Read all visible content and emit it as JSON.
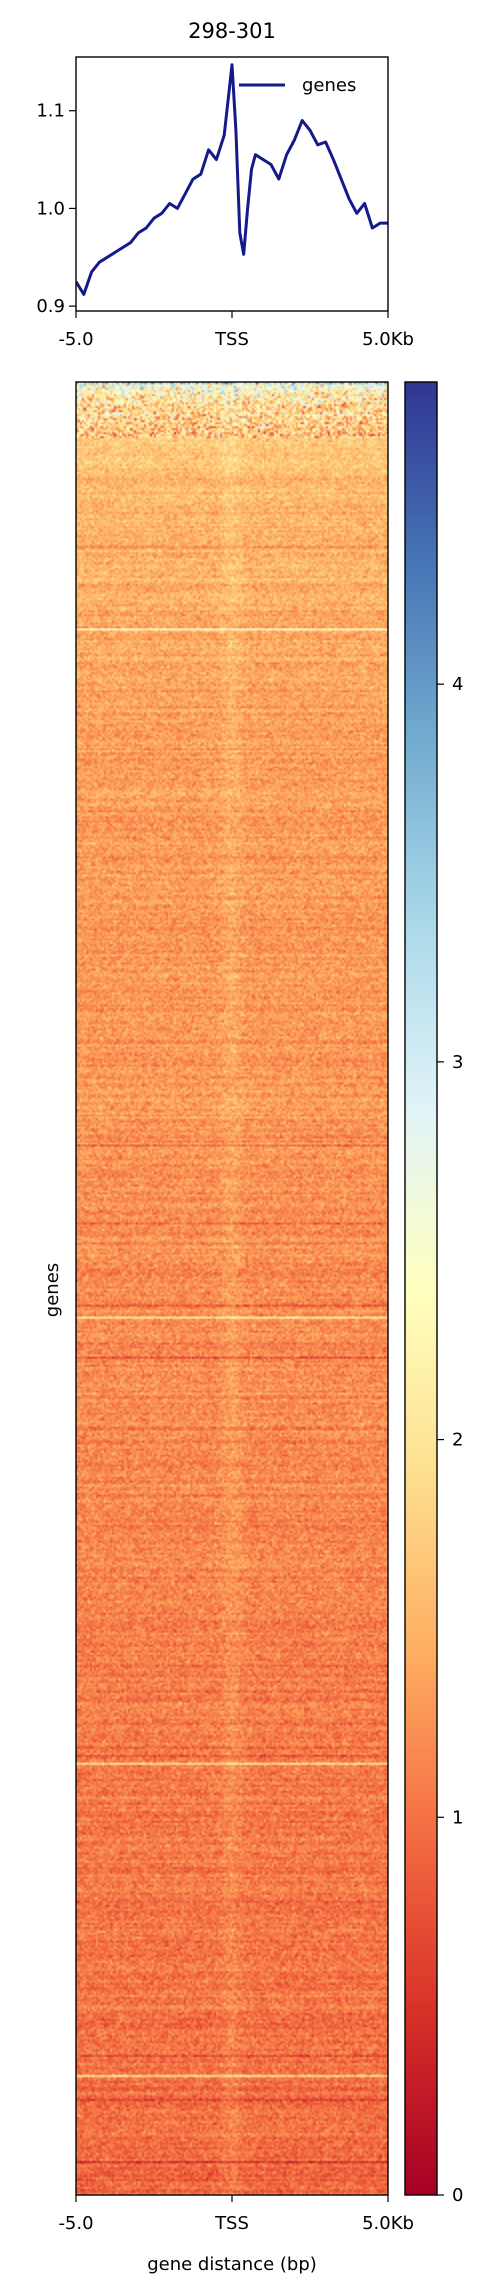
{
  "chart_data": [
    {
      "type": "line",
      "title": "298-301",
      "xlabel": "",
      "ylabel": "",
      "xticks": [
        "-5.0",
        "TSS",
        "5.0Kb"
      ],
      "yticks": [
        0.9,
        1.0,
        1.1
      ],
      "ylim": [
        0.895,
        1.155
      ],
      "xlim": [
        -5000,
        5000
      ],
      "legend": {
        "entries": [
          "genes"
        ],
        "placement": "top-right"
      },
      "series": [
        {
          "name": "genes",
          "color": "#141a8a",
          "x": [
            -5000,
            -4750,
            -4500,
            -4250,
            -4000,
            -3750,
            -3500,
            -3250,
            -3000,
            -2750,
            -2500,
            -2250,
            -2000,
            -1750,
            -1500,
            -1250,
            -1000,
            -750,
            -500,
            -250,
            0,
            125,
            250,
            375,
            500,
            625,
            750,
            1000,
            1250,
            1500,
            1750,
            2000,
            2250,
            2500,
            2750,
            3000,
            3250,
            3500,
            3750,
            4000,
            4250,
            4500,
            4750,
            5000
          ],
          "values": [
            0.925,
            0.912,
            0.935,
            0.945,
            0.95,
            0.955,
            0.96,
            0.965,
            0.975,
            0.98,
            0.99,
            0.995,
            1.005,
            1.0,
            1.015,
            1.03,
            1.035,
            1.06,
            1.05,
            1.075,
            1.147,
            1.08,
            0.975,
            0.953,
            1.0,
            1.04,
            1.055,
            1.05,
            1.045,
            1.03,
            1.055,
            1.07,
            1.09,
            1.08,
            1.065,
            1.068,
            1.05,
            1.03,
            1.01,
            0.995,
            1.005,
            0.98,
            0.985,
            0.985
          ]
        }
      ]
    },
    {
      "type": "heatmap",
      "xlabel": "gene distance (bp)",
      "ylabel": "genes",
      "xticks": [
        "-5.0",
        "TSS",
        "5.0Kb"
      ],
      "colorbar": {
        "colormap": "RdYlBu",
        "range": [
          0,
          4.8
        ],
        "ticks": [
          0,
          1,
          2,
          3,
          4
        ],
        "colors": [
          "#a50026",
          "#d73027",
          "#f46d43",
          "#fdae61",
          "#fee090",
          "#ffffbf",
          "#e0f3f8",
          "#abd9e9",
          "#74add1",
          "#4575b4",
          "#313695"
        ]
      },
      "row_mean_profile": {
        "row_fraction": [
          0.0,
          0.01,
          0.03,
          0.08,
          0.2,
          0.4,
          0.6,
          0.8,
          1.0
        ],
        "value": [
          2.6,
          2.0,
          1.7,
          1.5,
          1.35,
          1.25,
          1.15,
          1.05,
          0.95
        ]
      },
      "tss_enrichment": 0.15
    }
  ]
}
